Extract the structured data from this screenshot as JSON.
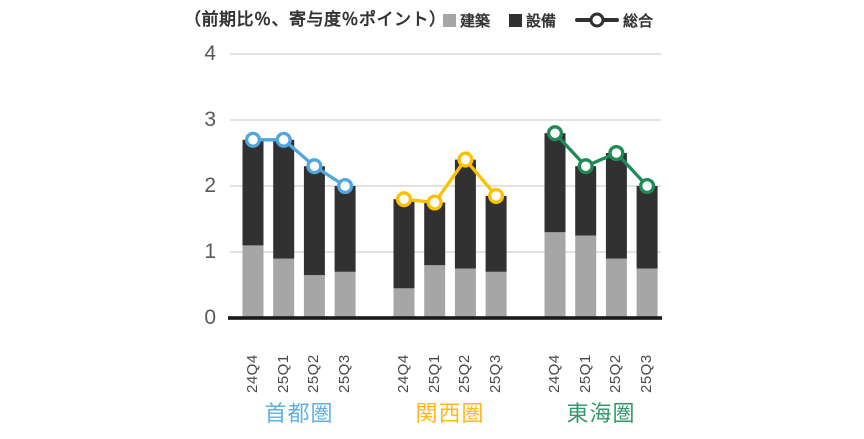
{
  "chart_data": {
    "type": "bar",
    "subtype": "stacked-bars-with-line-overlay",
    "title": "（前期比％、寄与度％ポイント）",
    "ylim": [
      0,
      4
    ],
    "yticks": [
      4,
      3,
      2,
      1,
      0
    ],
    "grid": true,
    "legend_position": "top-right",
    "categories": [
      "24Q4",
      "25Q1",
      "25Q2",
      "25Q3"
    ],
    "series_labels": {
      "construction": "建築",
      "equipment": "設備",
      "total": "総合"
    },
    "bar_colors": {
      "construction": "#A6A6A6",
      "equipment": "#313131"
    },
    "grid_color": "#D9D9D9",
    "baseline_color": "#1A1A1A",
    "axis_text_color": "#595959",
    "groups": [
      {
        "name": "首都圏",
        "line_color": "#4FA7DE",
        "label_color": "#5FB0E5",
        "construction": [
          1.1,
          0.9,
          0.65,
          0.7
        ],
        "equipment": [
          1.6,
          1.8,
          1.65,
          1.3
        ],
        "total": [
          2.7,
          2.7,
          2.3,
          2.0
        ]
      },
      {
        "name": "関西圏",
        "line_color": "#FFC000",
        "label_color": "#FFB81C",
        "construction": [
          0.45,
          0.8,
          0.75,
          0.7
        ],
        "equipment": [
          1.35,
          0.95,
          1.65,
          1.15
        ],
        "total": [
          1.8,
          1.75,
          2.4,
          1.85
        ]
      },
      {
        "name": "東海圏",
        "line_color": "#1E8B57",
        "label_color": "#33996B",
        "construction": [
          1.3,
          1.25,
          0.9,
          0.75
        ],
        "equipment": [
          1.5,
          1.05,
          1.6,
          1.25
        ],
        "total": [
          2.8,
          2.3,
          2.5,
          2.0
        ]
      }
    ]
  }
}
